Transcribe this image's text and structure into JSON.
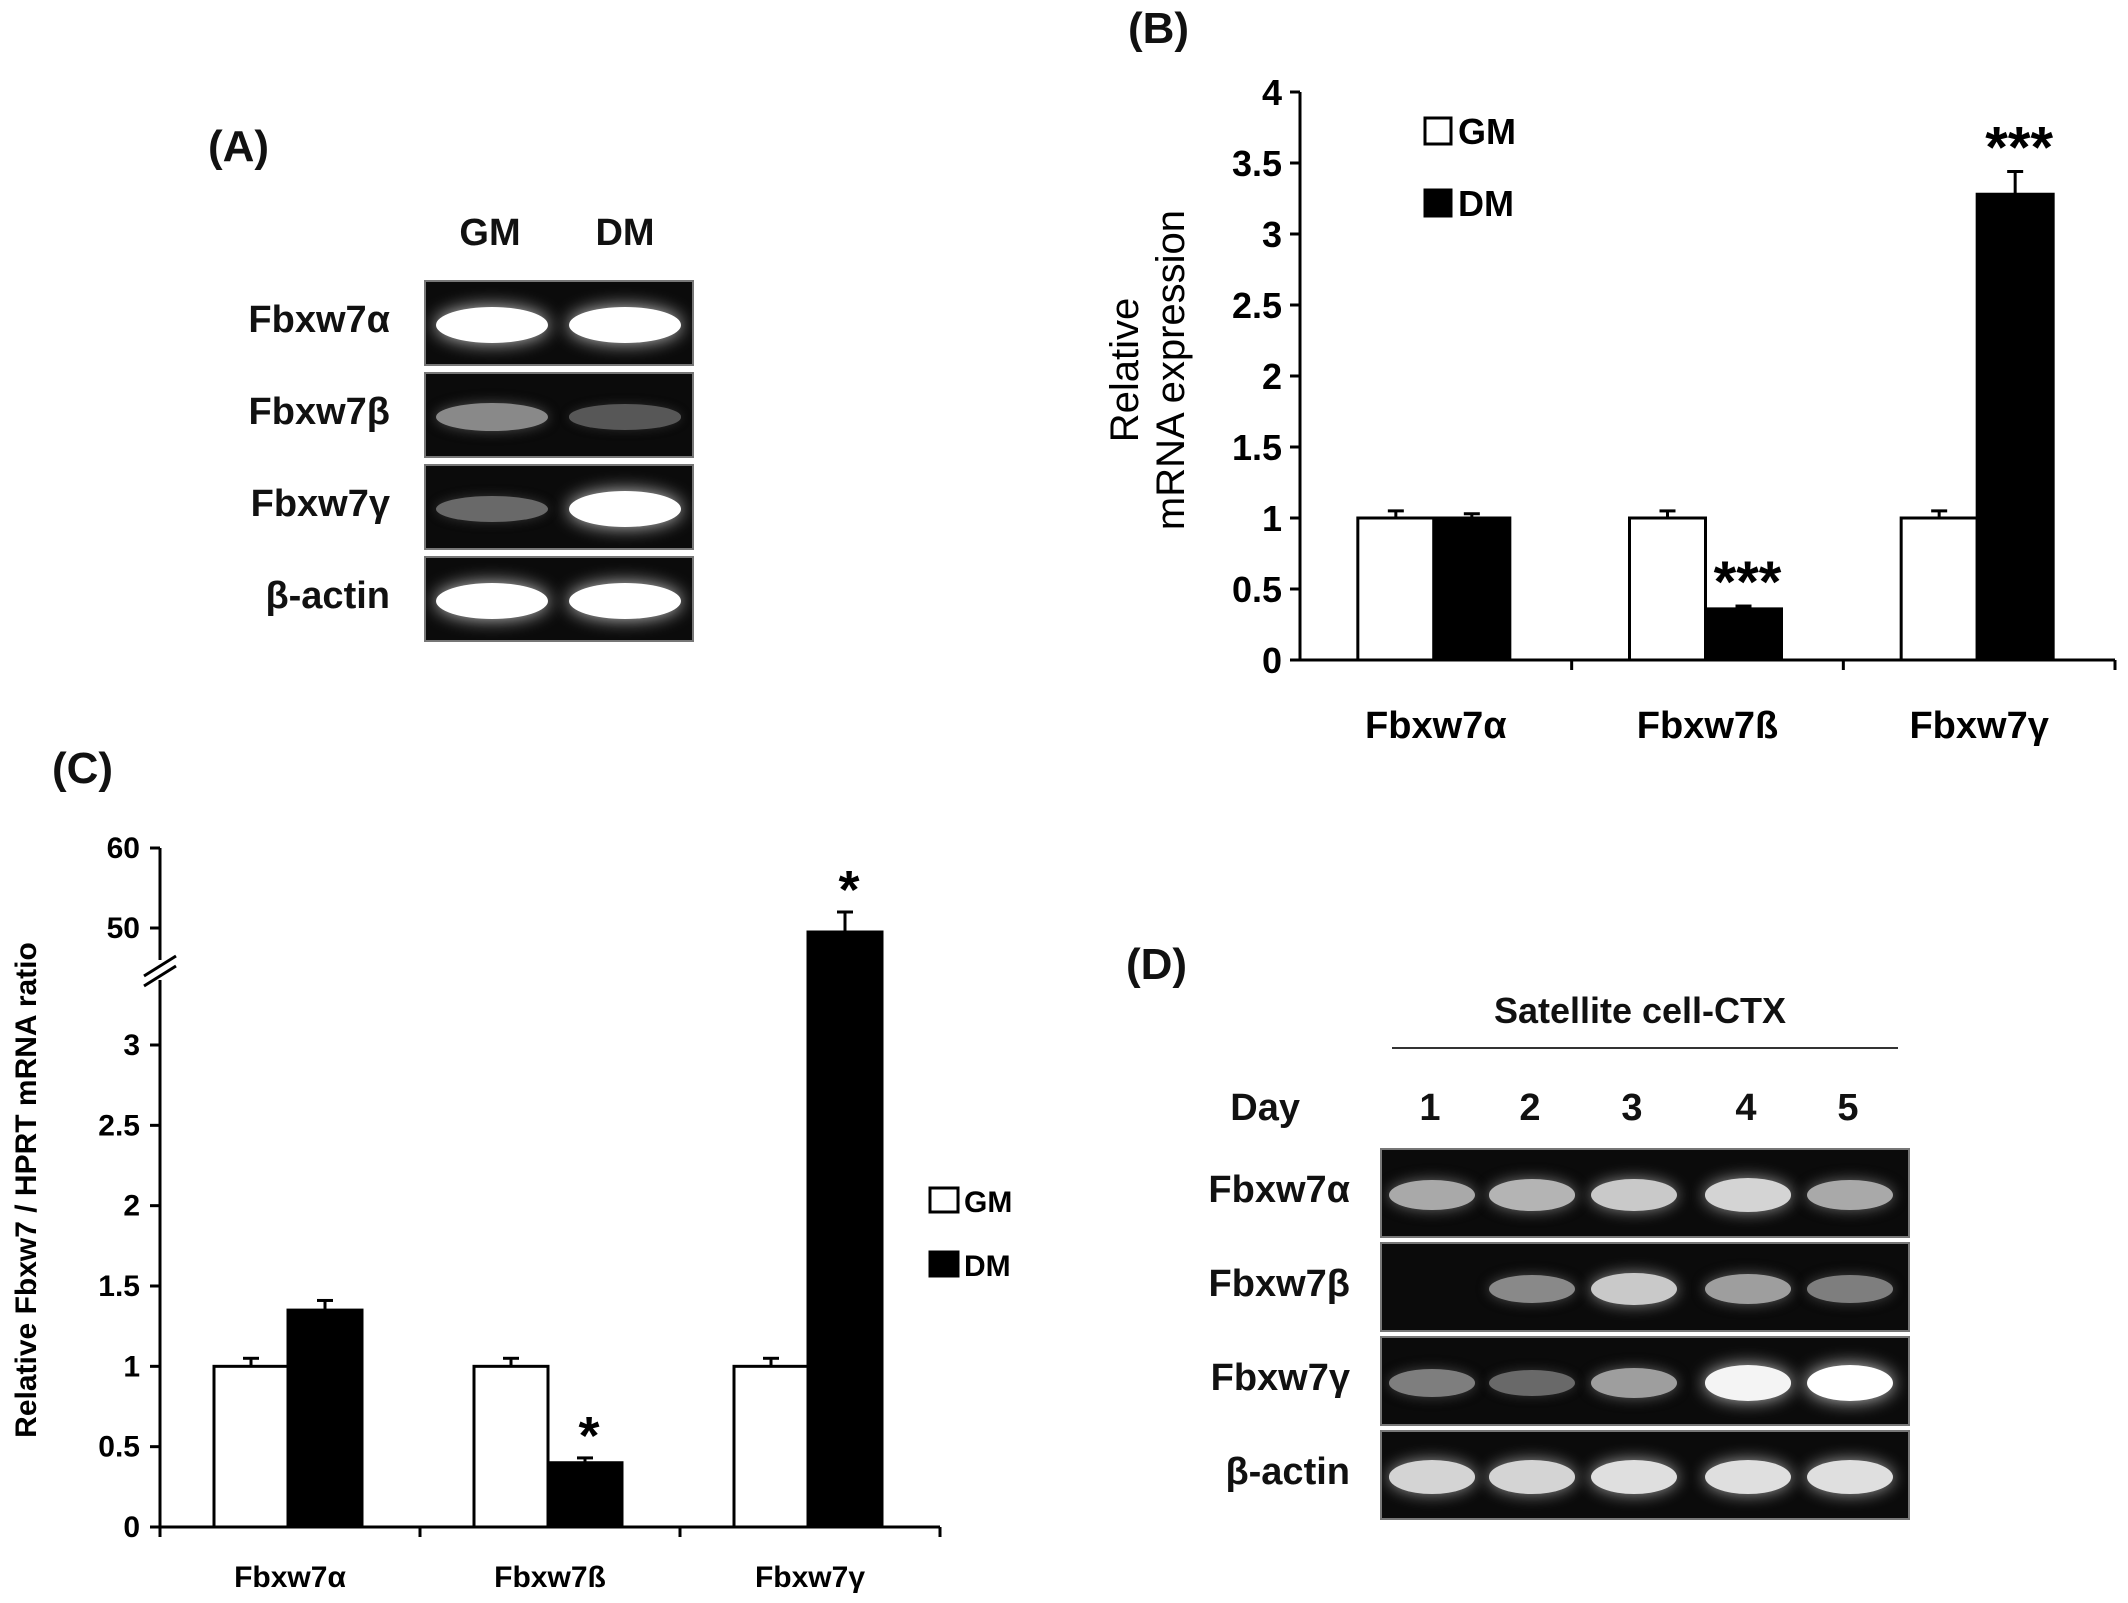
{
  "panel_a": {
    "label": "(A)",
    "columns": [
      "GM",
      "DM"
    ],
    "rows": [
      {
        "name": "Fbxw7α",
        "intensities": [
          1.0,
          1.0
        ]
      },
      {
        "name": "Fbxw7β",
        "intensities": [
          0.45,
          0.22
        ]
      },
      {
        "name": "Fbxw7γ",
        "intensities": [
          0.3,
          1.0
        ]
      },
      {
        "name": "β-actin",
        "intensities": [
          1.0,
          1.0
        ]
      }
    ]
  },
  "panel_d": {
    "label": "(D)",
    "header": "Satellite cell-CTX",
    "day_label": "Day",
    "days": [
      "1",
      "2",
      "3",
      "4",
      "5"
    ],
    "rows": [
      {
        "name": "Fbxw7α",
        "intensities": [
          0.6,
          0.65,
          0.75,
          0.8,
          0.6
        ]
      },
      {
        "name": "Fbxw7β",
        "intensities": [
          0.0,
          0.45,
          0.75,
          0.55,
          0.4
        ]
      },
      {
        "name": "Fbxw7γ",
        "intensities": [
          0.4,
          0.3,
          0.55,
          0.95,
          1.0
        ]
      },
      {
        "name": "β-actin",
        "intensities": [
          0.8,
          0.8,
          0.85,
          0.85,
          0.85
        ]
      }
    ]
  },
  "chart_data": [
    {
      "panel": "(B)",
      "type": "bar",
      "categories": [
        "Fbxw7α",
        "Fbxw7ß",
        "Fbxw7γ"
      ],
      "series": [
        {
          "name": "GM",
          "values": [
            1.0,
            1.0,
            1.0
          ],
          "errors": [
            0.05,
            0.05,
            0.05
          ],
          "color": "#ffffff"
        },
        {
          "name": "DM",
          "values": [
            1.0,
            0.36,
            3.28
          ],
          "errors": [
            0.03,
            0.02,
            0.16
          ],
          "color": "#000000"
        }
      ],
      "annotations": [
        {
          "category": "Fbxw7ß",
          "series": "DM",
          "text": "***"
        },
        {
          "category": "Fbxw7γ",
          "series": "DM",
          "text": "***"
        }
      ],
      "ylabel_line1": "Relative",
      "ylabel_line2": "mRNA expression",
      "ylim": [
        0,
        4
      ],
      "yticks": [
        "0",
        "0.5",
        "1",
        "1.5",
        "2",
        "2.5",
        "3",
        "3.5",
        "4"
      ],
      "legend_position": "top-left"
    },
    {
      "panel": "(C)",
      "type": "bar",
      "categories": [
        "Fbxw7α",
        "Fbxw7ß",
        "Fbxw7γ"
      ],
      "series": [
        {
          "name": "GM",
          "values": [
            1.0,
            1.0,
            1.0
          ],
          "errors": [
            0.05,
            0.05,
            0.05
          ],
          "color": "#ffffff"
        },
        {
          "name": "DM",
          "values": [
            1.35,
            0.4,
            49.5
          ],
          "errors": [
            0.06,
            0.03,
            2.5
          ],
          "color": "#000000"
        }
      ],
      "annotations": [
        {
          "category": "Fbxw7ß",
          "series": "DM",
          "text": "*"
        },
        {
          "category": "Fbxw7γ",
          "series": "DM",
          "text": "*"
        }
      ],
      "ylabel": "Relative Fbxw7 / HPRT mRNA ratio",
      "axis_break": [
        3,
        50
      ],
      "yticks": [
        "0",
        "0.5",
        "1",
        "1.5",
        "2",
        "2.5",
        "3",
        "50",
        "60"
      ],
      "legend_position": "right"
    }
  ]
}
